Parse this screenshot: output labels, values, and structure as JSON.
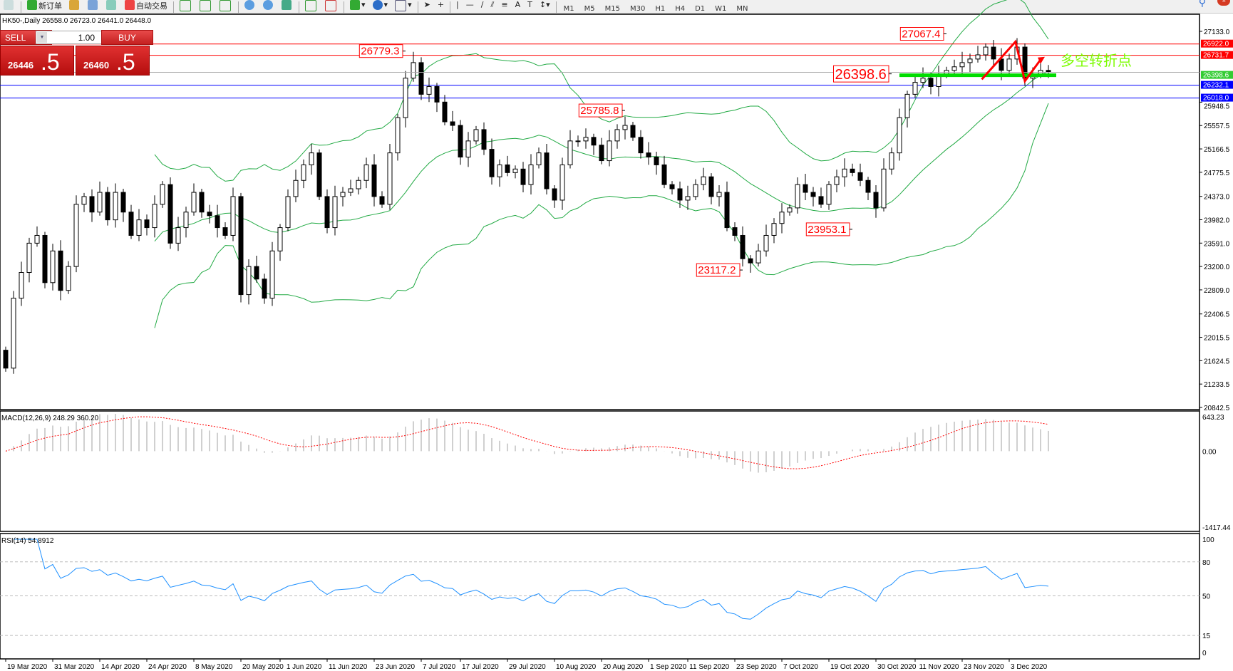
{
  "toolbar": {
    "new_order": "新订单",
    "auto_trading": "自动交易",
    "timeframes": [
      "M1",
      "M5",
      "M15",
      "M30",
      "H1",
      "H4",
      "D1",
      "W1",
      "MN"
    ],
    "notifications": "1"
  },
  "symbol_line": "HK50-,Daily  26558.0 26723.0 26441.0 26448.0",
  "one_click": {
    "sell_label": "SELL",
    "buy_label": "BUY",
    "lot": "1.00",
    "sell_small": "26446",
    "sell_big": ".5",
    "buy_small": "26460",
    "buy_big": ".5"
  },
  "chart_data": {
    "type": "candlestick",
    "symbol": "HK50-",
    "timeframe": "Daily",
    "closes": [
      21500,
      22670,
      23100,
      23590,
      23720,
      22930,
      23460,
      22800,
      23200,
      24240,
      24370,
      24110,
      24440,
      23980,
      24440,
      24110,
      23720,
      23980,
      23850,
      24240,
      24570,
      23590,
      23850,
      24110,
      24440,
      24110,
      24050,
      23850,
      23720,
      24370,
      22730,
      23200,
      22990,
      22670,
      23460,
      23850,
      24370,
      24640,
      24900,
      25100,
      24370,
      23850,
      24370,
      24440,
      24500,
      24640,
      24900,
      24370,
      24240,
      25100,
      25690,
      26350,
      26610,
      26080,
      26210,
      25950,
      25620,
      25560,
      25030,
      25300,
      25490,
      25160,
      24700,
      24900,
      24770,
      24830,
      24570,
      24900,
      25100,
      24500,
      24310,
      24900,
      25300,
      25300,
      25360,
      25230,
      24970,
      25300,
      25490,
      25560,
      25360,
      25100,
      25030,
      24900,
      24570,
      24500,
      24310,
      24370,
      24570,
      24700,
      24370,
      24440,
      23850,
      23720,
      23330,
      23260,
      23460,
      23720,
      23920,
      24110,
      24180,
      24570,
      24440,
      24370,
      24240,
      24570,
      24700,
      24830,
      24770,
      24640,
      24440,
      24180,
      24830,
      25100,
      25690,
      26080,
      26280,
      26350,
      26210,
      26410,
      26480,
      26540,
      26610,
      26670,
      26740,
      26870,
      26670,
      26480,
      26670,
      26870,
      26350,
      26410,
      26480,
      26448
    ],
    "price_axis": {
      "max": 27133.0,
      "min": 20842.5,
      "ticks": [
        "27133.0",
        "25948.5",
        "25557.5",
        "25166.5",
        "24775.5",
        "24373.0",
        "23982.0",
        "23591.0",
        "23200.0",
        "22809.0",
        "22406.5",
        "22015.5",
        "21624.5",
        "21233.5",
        "20842.5"
      ]
    },
    "date_ticks": [
      {
        "label": "19 Mar 2020",
        "bar": 0
      },
      {
        "label": "31 Mar 2020",
        "bar": 6
      },
      {
        "label": "14 Apr 2020",
        "bar": 12
      },
      {
        "label": "24 Apr 2020",
        "bar": 18
      },
      {
        "label": "8 May 2020",
        "bar": 24
      },
      {
        "label": "20 May 2020",
        "bar": 30
      },
      {
        "label": "1 Jun 2020",
        "bar": 35
      },
      {
        "label": "11 Jun 2020",
        "bar": 41
      },
      {
        "label": "23 Jun 2020",
        "bar": 47
      },
      {
        "label": "7 Jul 2020",
        "bar": 53
      },
      {
        "label": "17 Jul 2020",
        "bar": 58
      },
      {
        "label": "29 Jul 2020",
        "bar": 64
      },
      {
        "label": "10 Aug 2020",
        "bar": 70
      },
      {
        "label": "20 Aug 2020",
        "bar": 76
      },
      {
        "label": "1 Sep 2020",
        "bar": 82
      },
      {
        "label": "11 Sep 2020",
        "bar": 87
      },
      {
        "label": "23 Sep 2020",
        "bar": 93
      },
      {
        "label": "7 Oct 2020",
        "bar": 99
      },
      {
        "label": "19 Oct 2020",
        "bar": 105
      },
      {
        "label": "30 Oct 2020",
        "bar": 111
      },
      {
        "label": "11 Nov 2020",
        "bar": 116
      },
      {
        "label": "23 Nov 2020",
        "bar": 122
      },
      {
        "label": "3 Dec 2020",
        "bar": 128
      }
    ],
    "hlines": [
      {
        "price": 26922.0,
        "label": "26922.0",
        "color": "#ff0000"
      },
      {
        "price": 26731.7,
        "label": "26731.7",
        "color": "#ff0000"
      },
      {
        "price": 26232.1,
        "label": "26232.1",
        "color": "#0000ff"
      },
      {
        "price": 26018.0,
        "label": "26018.0",
        "color": "#0000ff"
      }
    ],
    "support_line": {
      "price": 26398.6,
      "label": "26398.6",
      "from_bar": 114,
      "to_bar": 134,
      "color": "#00dd00"
    },
    "annotations": [
      {
        "text": "26779.3",
        "bar": 51,
        "price": 26779.3
      },
      {
        "text": "25785.8",
        "bar": 79,
        "price": 25785.8
      },
      {
        "text": "23117.2",
        "bar": 94,
        "price": 23117.2
      },
      {
        "text": "23953.1",
        "bar": 108,
        "price": 23953.1,
        "below": true
      },
      {
        "text": "27067.4",
        "bar": 120,
        "price": 27067.4
      },
      {
        "text": "26398.6",
        "bar": 113,
        "price": 26398.6,
        "large": true
      }
    ],
    "zigzag": [
      {
        "bar": 124.5,
        "price": 26330
      },
      {
        "bar": 128.8,
        "price": 26960
      },
      {
        "bar": 130,
        "price": 26300
      },
      {
        "bar": 132,
        "price": 26660
      }
    ],
    "note_text": "多空转折点",
    "bollinger": {
      "period": 20,
      "deviations": 2,
      "color": "#22aa44"
    },
    "macd": {
      "label": "MACD(12,26,9) 248.29 360.20",
      "ticks": [
        "643.23",
        "0.00",
        "-1417.44"
      ],
      "max": 643.23,
      "min": -1417.44,
      "signal_color": "#ff0000",
      "hist_color": "#c0c0c0"
    },
    "rsi": {
      "label": "RSI(14) 54.8912",
      "ticks": [
        "100",
        "80",
        "50",
        "15",
        "0"
      ],
      "levels": [
        80,
        50,
        15
      ],
      "color": "#1e90ff"
    }
  }
}
